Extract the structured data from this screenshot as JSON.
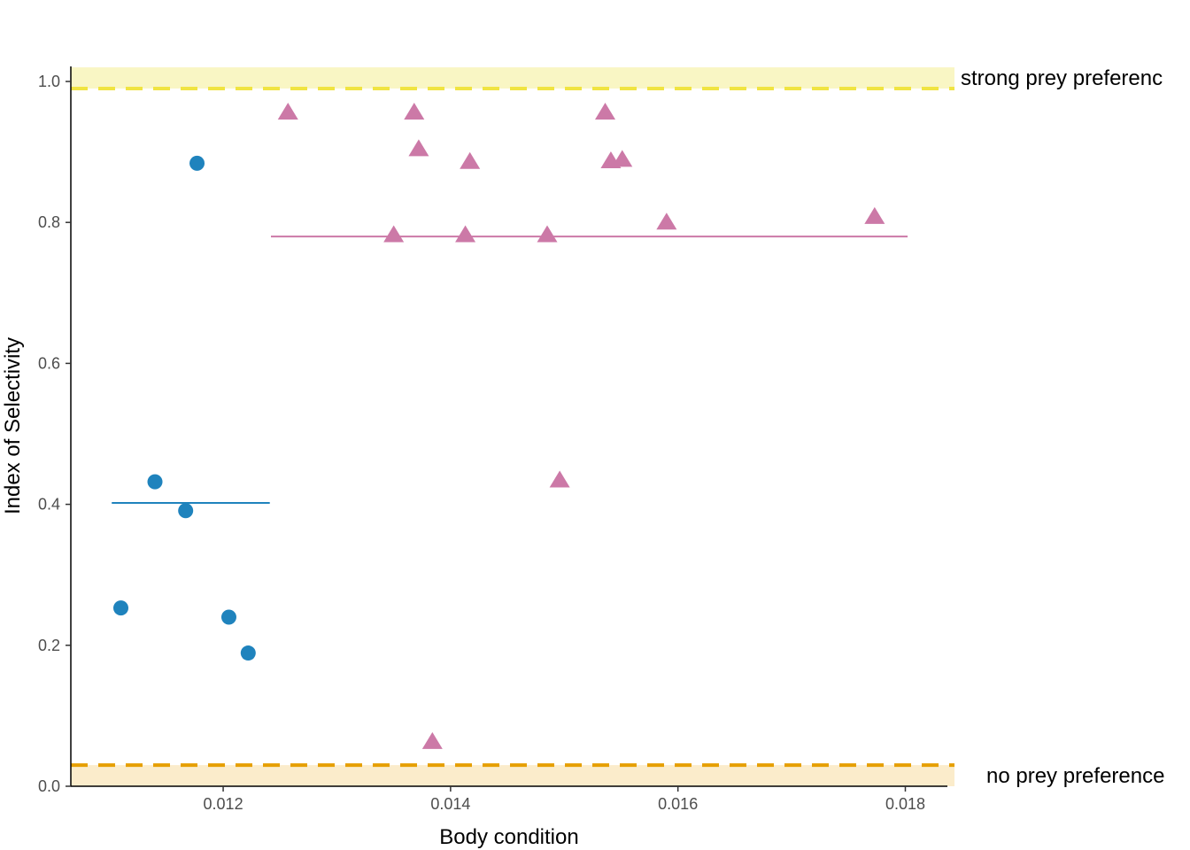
{
  "chart_data": {
    "type": "scatter",
    "title": "",
    "xlabel": "Body condition",
    "ylabel": "Index of Selectivity",
    "xlim": [
      0.01066,
      0.01837
    ],
    "ylim": [
      0.0,
      1.0
    ],
    "x_ticks": [
      {
        "value": 0.012,
        "label": "0.012"
      },
      {
        "value": 0.014,
        "label": "0.014"
      },
      {
        "value": 0.016,
        "label": "0.016"
      },
      {
        "value": 0.018,
        "label": "0.018"
      }
    ],
    "y_ticks": [
      {
        "value": 0.0,
        "label": "0.0"
      },
      {
        "value": 0.2,
        "label": "0.2"
      },
      {
        "value": 0.4,
        "label": "0.4"
      },
      {
        "value": 0.6,
        "label": "0.6"
      },
      {
        "value": 0.8,
        "label": "0.8"
      },
      {
        "value": 1.0,
        "label": "1.0"
      }
    ],
    "grid": false,
    "legend": "none",
    "series": [
      {
        "marker": "circle",
        "color": "#1f83bd",
        "points": [
          {
            "x": 0.0111,
            "y": 0.253
          },
          {
            "x": 0.0114,
            "y": 0.432
          },
          {
            "x": 0.01167,
            "y": 0.391
          },
          {
            "x": 0.01177,
            "y": 0.884
          },
          {
            "x": 0.01205,
            "y": 0.24
          },
          {
            "x": 0.01222,
            "y": 0.189
          }
        ],
        "mean_line": {
          "x_start": 0.01102,
          "x_end": 0.01241,
          "y": 0.402
        }
      },
      {
        "marker": "triangle",
        "color": "#cc79a7",
        "points": [
          {
            "x": 0.01257,
            "y": 0.955
          },
          {
            "x": 0.0135,
            "y": 0.781
          },
          {
            "x": 0.01368,
            "y": 0.955
          },
          {
            "x": 0.01372,
            "y": 0.903
          },
          {
            "x": 0.01384,
            "y": 0.062
          },
          {
            "x": 0.01413,
            "y": 0.781
          },
          {
            "x": 0.01417,
            "y": 0.885
          },
          {
            "x": 0.01485,
            "y": 0.781
          },
          {
            "x": 0.01496,
            "y": 0.433
          },
          {
            "x": 0.01536,
            "y": 0.955
          },
          {
            "x": 0.01541,
            "y": 0.886
          },
          {
            "x": 0.01551,
            "y": 0.888
          },
          {
            "x": 0.0159,
            "y": 0.799
          },
          {
            "x": 0.01773,
            "y": 0.807
          }
        ],
        "mean_line": {
          "x_start": 0.01242,
          "x_end": 0.01802,
          "y": 0.78
        }
      }
    ],
    "reference_bands": [
      {
        "label": "strong prey preferenc",
        "y_line": 0.99,
        "y_from": 0.99,
        "y_to": 1.02,
        "line_color": "#f0e442",
        "fill_color": "#f9f6c4"
      },
      {
        "label": "no prey preference",
        "y_line": 0.03,
        "y_from": 0.0,
        "y_to": 0.03,
        "line_color": "#e69f00",
        "fill_color": "#fbeccb"
      }
    ]
  }
}
